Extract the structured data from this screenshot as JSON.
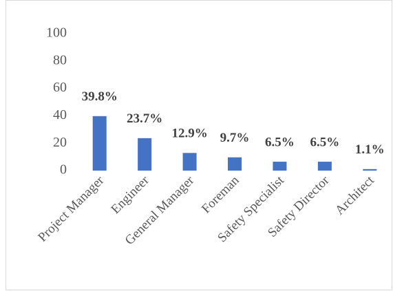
{
  "chart_data": {
    "type": "bar",
    "categories": [
      "Project Manager",
      "Engineer",
      "General Manager",
      "Foreman",
      "Safety Specialist",
      "Safety Director",
      "Architect"
    ],
    "values": [
      39.8,
      23.7,
      12.9,
      9.7,
      6.5,
      6.5,
      1.1
    ],
    "value_labels": [
      "39.8%",
      "23.7%",
      "12.9%",
      "9.7%",
      "6.5%",
      "6.5%",
      "1.1%"
    ],
    "color": "#4472c4",
    "ylim": [
      0,
      100
    ],
    "yticks": [
      0,
      20,
      40,
      60,
      80,
      100
    ],
    "grid": false
  }
}
